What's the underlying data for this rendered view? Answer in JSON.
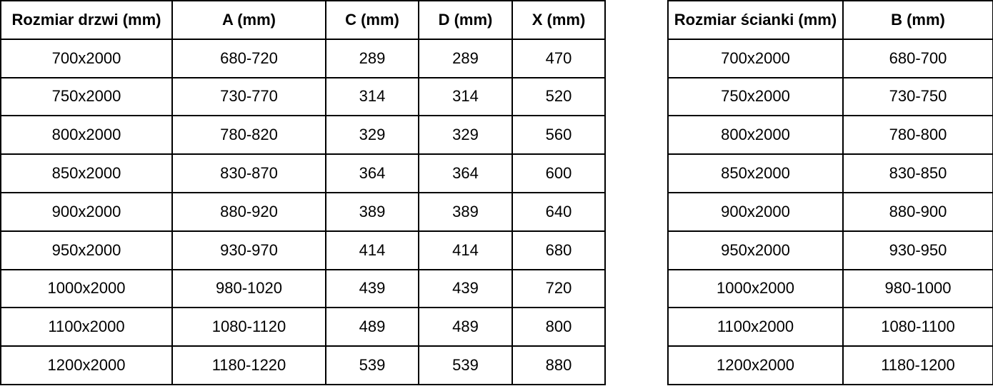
{
  "colors": {
    "border": "#000000",
    "text": "#000000",
    "background": "#ffffff"
  },
  "tables": [
    {
      "id": "doors",
      "headers": [
        "Rozmiar drzwi (mm)",
        "A (mm)",
        "C (mm)",
        "D (mm)",
        "X (mm)"
      ],
      "rows": [
        [
          "700x2000",
          "680-720",
          "289",
          "289",
          "470"
        ],
        [
          "750x2000",
          "730-770",
          "314",
          "314",
          "520"
        ],
        [
          "800x2000",
          "780-820",
          "329",
          "329",
          "560"
        ],
        [
          "850x2000",
          "830-870",
          "364",
          "364",
          "600"
        ],
        [
          "900x2000",
          "880-920",
          "389",
          "389",
          "640"
        ],
        [
          "950x2000",
          "930-970",
          "414",
          "414",
          "680"
        ],
        [
          "1000x2000",
          "980-1020",
          "439",
          "439",
          "720"
        ],
        [
          "1100x2000",
          "1080-1120",
          "489",
          "489",
          "800"
        ],
        [
          "1200x2000",
          "1180-1220",
          "539",
          "539",
          "880"
        ]
      ]
    },
    {
      "id": "walls",
      "headers": [
        "Rozmiar ścianki (mm)",
        "B (mm)"
      ],
      "rows": [
        [
          "700x2000",
          "680-700"
        ],
        [
          "750x2000",
          "730-750"
        ],
        [
          "800x2000",
          "780-800"
        ],
        [
          "850x2000",
          "830-850"
        ],
        [
          "900x2000",
          "880-900"
        ],
        [
          "950x2000",
          "930-950"
        ],
        [
          "1000x2000",
          "980-1000"
        ],
        [
          "1100x2000",
          "1080-1100"
        ],
        [
          "1200x2000",
          "1180-1200"
        ]
      ]
    }
  ]
}
